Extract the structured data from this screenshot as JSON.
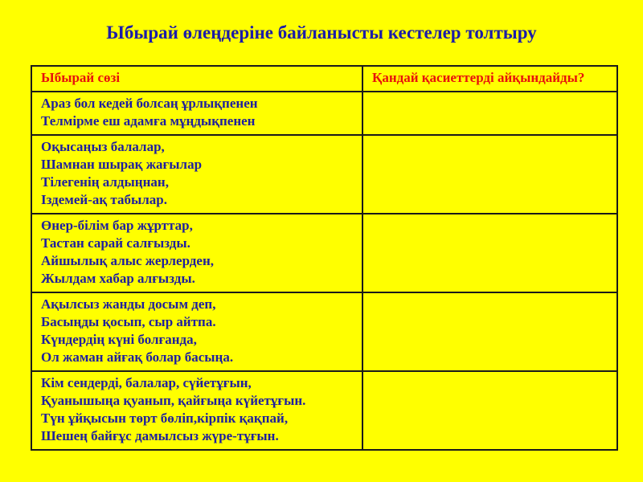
{
  "slide": {
    "title": "Ыбырай өлеңдеріне байланысты кестелер толтыру",
    "background_color": "#FFFF00",
    "title_color": "#1C1CA8",
    "body_text_color": "#1F1F9E",
    "header_text_color": "#E8120C",
    "border_color": "#1A1A1A"
  },
  "table": {
    "headers": [
      "Ыбырай сөзі",
      "Қандай қасиеттерді айқындайды?"
    ],
    "rows": [
      {
        "lines": [
          "Араз бол кедей болсаң ұрлықпенен",
          "Телмірме еш адамға мұңдықпенен"
        ],
        "answer": ""
      },
      {
        "lines": [
          "Оқысаңыз балалар,",
          "Шамнан шырақ жағылар",
          "Тілегенің алдыңнан,",
          "Іздемей-ақ табылар."
        ],
        "answer": ""
      },
      {
        "lines": [
          "Өнер-білім бар жұрттар,",
          "Тастан сарай салғызды.",
          "Айшылық алыс жерлерден,",
          "Жылдам хабар алғызды."
        ],
        "answer": ""
      },
      {
        "lines": [
          "Ақылсыз жанды досым деп,",
          "Басыңды қосып, сыр айтпа.",
          "Күндердің күні болғанда,",
          "Ол жаман айғақ болар басыңа."
        ],
        "answer": ""
      },
      {
        "lines": [
          "Кім сендерді, балалар, сүйетұғын,",
          "Қуанышыңа қуанып, қайғыңа күйетұғын.",
          "Түн ұйқысын төрт бөліп,кірпік қақпай,",
          "Шешең байғұс дамылсыз жүре-тұғын."
        ],
        "answer": ""
      }
    ]
  }
}
